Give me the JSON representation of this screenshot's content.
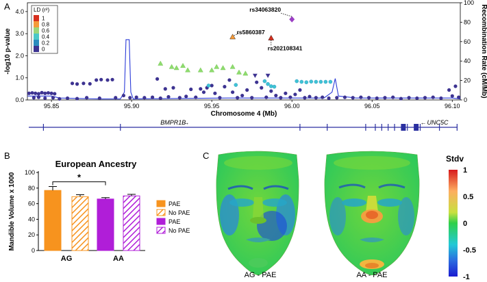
{
  "panels": {
    "a_letter": "A",
    "b_letter": "B",
    "c_letter": "C"
  },
  "chart_data": [
    {
      "type": "scatter",
      "xlabel": "Chromosome 4 (Mb)",
      "ylabel": "-log10 p-value",
      "y2label": "Recombination Rate (cM/Mb)",
      "xlim": [
        95.835,
        96.105
      ],
      "ylim": [
        0,
        4.4
      ],
      "y2lim": [
        0,
        100
      ],
      "xticks": [
        "95.85",
        "95.90",
        "95.95",
        "96.00",
        "96.05",
        "96.10"
      ],
      "xtick_values": [
        95.85,
        95.9,
        95.95,
        96.0,
        96.05,
        96.1
      ],
      "yticks": [
        "0.0",
        "1.0",
        "2.0",
        "3.0",
        "4.0"
      ],
      "ytick_values": [
        0,
        1,
        2,
        3,
        4
      ],
      "y2ticks": [
        "0",
        "20",
        "40",
        "60",
        "80",
        "100"
      ],
      "y2tick_values": [
        0,
        20,
        40,
        60,
        80,
        100
      ],
      "legend": {
        "title": "LD (r²)",
        "entries": [
          {
            "label": "1",
            "color": "#d7301f"
          },
          {
            "label": "0.8",
            "color": "#f59a3a"
          },
          {
            "label": "0.6",
            "color": "#9bd67a"
          },
          {
            "label": "0.4",
            "color": "#4bc8c8"
          },
          {
            "label": "0.2",
            "color": "#2b8cbe"
          },
          {
            "label": "0",
            "color": "#3d3391"
          }
        ]
      },
      "annotations": [
        {
          "label": "rs34063820",
          "x": 96.0,
          "y": 3.65
        },
        {
          "label": "rs5860387",
          "x": 95.963,
          "y": 2.85
        },
        {
          "label": "rs202108341",
          "x": 95.987,
          "y": 2.8
        }
      ],
      "highlighted_snps": [
        {
          "x": 96.0,
          "y": 3.65,
          "shape": "diamond",
          "color": "#9b3fc4"
        },
        {
          "x": 95.963,
          "y": 2.85,
          "shape": "triangle-up",
          "color": "#f59a3a"
        },
        {
          "x": 95.987,
          "y": 2.8,
          "shape": "triangle-up",
          "color": "#d7301f"
        }
      ],
      "green_snps": [
        [
          95.918,
          1.65
        ],
        [
          95.925,
          1.5
        ],
        [
          95.928,
          1.45
        ],
        [
          95.932,
          1.55
        ],
        [
          95.935,
          1.35
        ],
        [
          95.943,
          1.35
        ],
        [
          95.95,
          1.35
        ],
        [
          95.953,
          1.5
        ],
        [
          95.957,
          1.45
        ],
        [
          95.963,
          1.5
        ],
        [
          95.967,
          1.25
        ],
        [
          95.971,
          1.2
        ]
      ],
      "cyan_snps": [
        [
          95.948,
          0.65
        ],
        [
          95.965,
          0.68
        ],
        [
          95.983,
          0.85
        ],
        [
          95.985,
          0.72
        ],
        [
          95.987,
          0.62
        ],
        [
          95.989,
          0.6
        ],
        [
          96.003,
          0.85
        ],
        [
          96.006,
          0.82
        ],
        [
          96.009,
          0.8
        ],
        [
          96.012,
          0.83
        ],
        [
          96.015,
          0.82
        ],
        [
          96.018,
          0.82
        ],
        [
          96.021,
          0.82
        ],
        [
          96.024,
          0.82
        ]
      ],
      "navy_triangles": [
        [
          95.977,
          1.1
        ],
        [
          95.985,
          1.1
        ]
      ],
      "purple_snps": [
        [
          95.836,
          0.3
        ],
        [
          95.838,
          0.32
        ],
        [
          95.84,
          0.3
        ],
        [
          95.842,
          0.28
        ],
        [
          95.844,
          0.33
        ],
        [
          95.846,
          0.3
        ],
        [
          95.848,
          0.32
        ],
        [
          95.85,
          0.3
        ],
        [
          95.852,
          0.28
        ],
        [
          95.839,
          0.1
        ],
        [
          95.842,
          0.12
        ],
        [
          95.846,
          0.08
        ],
        [
          95.851,
          0.1
        ],
        [
          95.855,
          0.05
        ],
        [
          95.86,
          0.08
        ],
        [
          95.863,
          0.75
        ],
        [
          95.866,
          0.72
        ],
        [
          95.87,
          0.75
        ],
        [
          95.874,
          0.73
        ],
        [
          95.878,
          0.9
        ],
        [
          95.881,
          0.92
        ],
        [
          95.885,
          0.9
        ],
        [
          95.888,
          0.92
        ],
        [
          95.866,
          0.06
        ],
        [
          95.872,
          0.1
        ],
        [
          95.88,
          0.08
        ],
        [
          95.89,
          0.1
        ],
        [
          95.899,
          0.1
        ],
        [
          95.903,
          0.12
        ],
        [
          95.908,
          0.1
        ],
        [
          95.913,
          0.12
        ],
        [
          95.918,
          0.08
        ],
        [
          95.923,
          0.14
        ],
        [
          95.926,
          0.55
        ],
        [
          95.93,
          0.1
        ],
        [
          95.934,
          0.16
        ],
        [
          95.937,
          0.48
        ],
        [
          95.94,
          0.12
        ],
        [
          95.943,
          0.5
        ],
        [
          95.945,
          0.35
        ],
        [
          95.947,
          0.55
        ],
        [
          95.95,
          0.65
        ],
        [
          95.952,
          0.3
        ],
        [
          95.955,
          0.1
        ],
        [
          95.958,
          0.6
        ],
        [
          95.961,
          0.9
        ],
        [
          95.963,
          0.35
        ],
        [
          95.966,
          0.1
        ],
        [
          95.969,
          0.2
        ],
        [
          95.972,
          0.45
        ],
        [
          95.975,
          0.1
        ],
        [
          95.978,
          0.8
        ],
        [
          95.981,
          0.55
        ],
        [
          95.984,
          0.12
        ],
        [
          95.987,
          0.4
        ],
        [
          95.99,
          0.2
        ],
        [
          95.993,
          0.1
        ],
        [
          95.996,
          0.3
        ],
        [
          95.999,
          0.12
        ],
        [
          96.002,
          0.25
        ],
        [
          96.005,
          0.45
        ],
        [
          96.008,
          0.1
        ],
        [
          96.011,
          0.15
        ],
        [
          96.015,
          0.1
        ],
        [
          96.019,
          0.12
        ],
        [
          96.023,
          0.08
        ],
        [
          96.028,
          0.1
        ],
        [
          96.033,
          0.12
        ],
        [
          96.038,
          0.1
        ],
        [
          96.043,
          0.12
        ],
        [
          96.048,
          0.1
        ],
        [
          96.053,
          0.08
        ],
        [
          96.058,
          0.1
        ],
        [
          96.063,
          0.12
        ],
        [
          96.068,
          0.06
        ],
        [
          96.073,
          0.1
        ],
        [
          96.078,
          0.08
        ],
        [
          96.083,
          0.1
        ],
        [
          96.088,
          0.12
        ],
        [
          96.093,
          0.08
        ],
        [
          96.098,
          0.45
        ],
        [
          96.1,
          0.18
        ],
        [
          96.102,
          0.62
        ],
        [
          96.104,
          0.12
        ],
        [
          95.895,
          0.2
        ],
        [
          95.916,
          0.95
        ],
        [
          95.921,
          0.5
        ]
      ],
      "recombination": [
        [
          95.835,
          4
        ],
        [
          95.85,
          4
        ],
        [
          95.855,
          2
        ],
        [
          95.88,
          1
        ],
        [
          95.893,
          1
        ],
        [
          95.8955,
          8
        ],
        [
          95.8965,
          62
        ],
        [
          95.8985,
          62
        ],
        [
          95.8995,
          8
        ],
        [
          95.901,
          1
        ],
        [
          95.96,
          2
        ],
        [
          96.02,
          2
        ],
        [
          96.025,
          8
        ],
        [
          96.027,
          22
        ],
        [
          96.029,
          4
        ],
        [
          96.04,
          2
        ],
        [
          96.1,
          2
        ],
        [
          96.105,
          1
        ]
      ],
      "genes": [
        {
          "name": "BMPR1B",
          "direction": "→",
          "label_x": 95.918,
          "start": 95.838,
          "end": 96.105
        },
        {
          "name": "UNC5C",
          "direction": "←",
          "label_x": 96.086,
          "start": 96.02,
          "end": 96.105
        }
      ],
      "exons": [
        95.845,
        95.893,
        96.005,
        96.022,
        96.046,
        96.052,
        96.056,
        96.06,
        96.064,
        96.072,
        96.08,
        96.092,
        96.103
      ],
      "exon_blocks": [
        [
          96.068,
          96.071
        ],
        [
          96.076,
          96.079
        ]
      ]
    },
    {
      "type": "bar",
      "title": "European Ancestry",
      "ylabel": "Mandible Volume x 1000",
      "categories": [
        "AG",
        "AA"
      ],
      "ylim": [
        0,
        100
      ],
      "yticks": [
        "0",
        "20",
        "40",
        "60",
        "80",
        "100"
      ],
      "ytick_values": [
        0,
        20,
        40,
        60,
        80,
        100
      ],
      "series": [
        {
          "name": "PAE",
          "group": "AG",
          "value": 77,
          "error": 5,
          "color": "#f7931e",
          "hatch": false
        },
        {
          "name": "No PAE",
          "group": "AG",
          "value": 69,
          "error": 2.5,
          "color": "#f7931e",
          "hatch": true
        },
        {
          "name": "PAE",
          "group": "AA",
          "value": 66,
          "error": 1.8,
          "color": "#b01ed8",
          "hatch": false
        },
        {
          "name": "No PAE",
          "group": "AA",
          "value": 70,
          "error": 2,
          "color": "#b01ed8",
          "hatch": true
        }
      ],
      "significance": {
        "label": "*",
        "from_bar": 0,
        "to_bar": 2
      }
    }
  ],
  "faces": {
    "left_label": "AG - PAE",
    "right_label": "AA - PAE",
    "colorbar_title": "Stdv",
    "colorbar_ticks": [
      "1",
      "0.5",
      "0",
      "-0.5",
      "-1"
    ],
    "colorbar_tick_values": [
      1,
      0.5,
      0,
      -0.5,
      -1
    ]
  }
}
